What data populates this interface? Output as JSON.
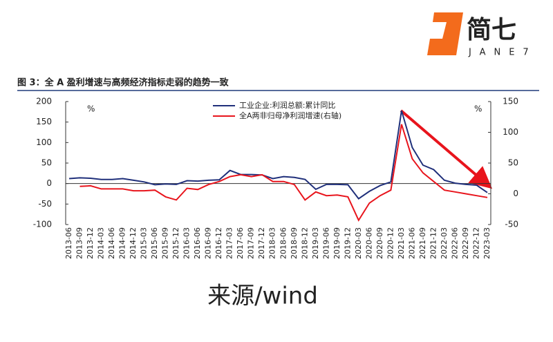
{
  "header": {
    "brand": "简七",
    "brand_en": "JANE7"
  },
  "source": "来源/wind",
  "chart_data": {
    "type": "line",
    "title": "图 3：全 A 盈利增速与高频经济指标走弱的趋势一致",
    "ylabel": "%",
    "y2label": "%",
    "categories": [
      "2013-06",
      "2013-09",
      "2013-12",
      "2014-03",
      "2014-06",
      "2014-09",
      "2014-12",
      "2015-03",
      "2015-06",
      "2015-09",
      "2015-12",
      "2016-03",
      "2016-06",
      "2016-09",
      "2016-12",
      "2017-03",
      "2017-06",
      "2017-09",
      "2017-12",
      "2018-03",
      "2018-06",
      "2018-09",
      "2018-12",
      "2019-03",
      "2019-06",
      "2019-09",
      "2019-12",
      "2020-03",
      "2020-06",
      "2020-09",
      "2020-12",
      "2021-03",
      "2021-06",
      "2021-09",
      "2021-12",
      "2022-03",
      "2022-06",
      "2022-09",
      "2022-12",
      "2023-03"
    ],
    "series": [
      {
        "name": "工业企业:利润总额:累计同比",
        "color": "#1f2f7a",
        "values": [
          12,
          14,
          13,
          10,
          10,
          12,
          8,
          4,
          -3,
          -1,
          -2,
          7,
          6,
          8,
          9,
          32,
          22,
          22,
          21,
          12,
          17,
          15,
          10,
          -14,
          -2,
          -2,
          -3,
          -37,
          -19,
          -5,
          4,
          178,
          88,
          45,
          34,
          8,
          1,
          -2,
          -4,
          -22
        ]
      },
      {
        "name": "全A两非归母净利润增速(右轴)",
        "color": "#e8141c",
        "axis": "y2",
        "values": [
          null,
          12,
          13,
          8,
          8,
          8,
          5,
          5,
          6,
          -5,
          -10,
          9,
          7,
          15,
          20,
          28,
          31,
          28,
          31,
          20,
          20,
          15,
          -10,
          3,
          -3,
          -2,
          -5,
          -43,
          -15,
          -3,
          6,
          113,
          57,
          34,
          20,
          6,
          3,
          0,
          -3,
          -6
        ]
      }
    ],
    "ylim": [
      -100,
      200
    ],
    "yticks": [
      -100,
      -50,
      0,
      50,
      100,
      150,
      200
    ],
    "y2lim": [
      -50,
      150
    ],
    "y2ticks": [
      -50,
      0,
      50,
      100,
      150
    ]
  }
}
